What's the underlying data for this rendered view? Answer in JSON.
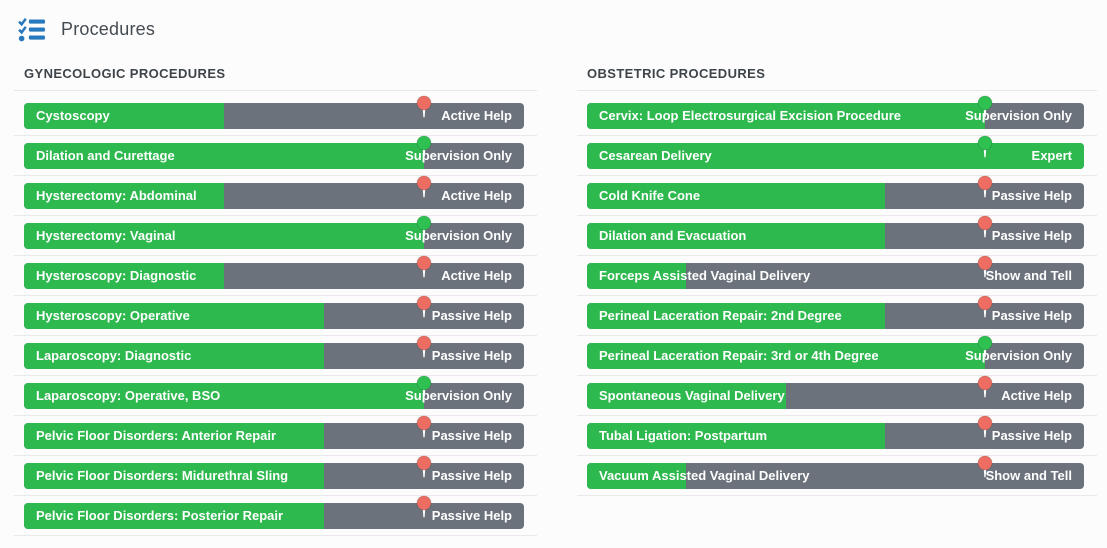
{
  "header": {
    "title": "Procedures",
    "icon": "tasks-checklist-icon"
  },
  "target_percent": 80,
  "status_scale": [
    "Show and Tell",
    "Active Help",
    "Passive Help",
    "Supervision Only",
    "Expert"
  ],
  "columns": [
    {
      "title": "GYNECOLOGIC PROCEDURES",
      "rows": [
        {
          "label": "Cystoscopy",
          "status": "Active Help",
          "progress_percent": 40,
          "target_met": false
        },
        {
          "label": "Dilation and Curettage",
          "status": "Supervision Only",
          "progress_percent": 80,
          "target_met": true
        },
        {
          "label": "Hysterectomy: Abdominal",
          "status": "Active Help",
          "progress_percent": 40,
          "target_met": false
        },
        {
          "label": "Hysterectomy: Vaginal",
          "status": "Supervision Only",
          "progress_percent": 80,
          "target_met": true
        },
        {
          "label": "Hysteroscopy: Diagnostic",
          "status": "Active Help",
          "progress_percent": 40,
          "target_met": false
        },
        {
          "label": "Hysteroscopy: Operative",
          "status": "Passive Help",
          "progress_percent": 60,
          "target_met": false
        },
        {
          "label": "Laparoscopy: Diagnostic",
          "status": "Passive Help",
          "progress_percent": 60,
          "target_met": false
        },
        {
          "label": "Laparoscopy: Operative, BSO",
          "status": "Supervision Only",
          "progress_percent": 80,
          "target_met": true
        },
        {
          "label": "Pelvic Floor Disorders: Anterior Repair",
          "status": "Passive Help",
          "progress_percent": 60,
          "target_met": false
        },
        {
          "label": "Pelvic Floor Disorders: Midurethral Sling",
          "status": "Passive Help",
          "progress_percent": 60,
          "target_met": false
        },
        {
          "label": "Pelvic Floor Disorders: Posterior Repair",
          "status": "Passive Help",
          "progress_percent": 60,
          "target_met": false
        }
      ]
    },
    {
      "title": "OBSTETRIC PROCEDURES",
      "rows": [
        {
          "label": "Cervix: Loop Electrosurgical Excision Procedure",
          "status": "Supervision Only",
          "progress_percent": 80,
          "target_met": true
        },
        {
          "label": "Cesarean Delivery",
          "status": "Expert",
          "progress_percent": 100,
          "target_met": true
        },
        {
          "label": "Cold Knife Cone",
          "status": "Passive Help",
          "progress_percent": 60,
          "target_met": false
        },
        {
          "label": "Dilation and Evacuation",
          "status": "Passive Help",
          "progress_percent": 60,
          "target_met": false
        },
        {
          "label": "Forceps Assisted Vaginal Delivery",
          "status": "Show and Tell",
          "progress_percent": 20,
          "target_met": false
        },
        {
          "label": "Perineal Laceration Repair: 2nd Degree",
          "status": "Passive Help",
          "progress_percent": 60,
          "target_met": false
        },
        {
          "label": "Perineal Laceration Repair: 3rd or 4th Degree",
          "status": "Supervision Only",
          "progress_percent": 80,
          "target_met": true
        },
        {
          "label": "Spontaneous Vaginal Delivery",
          "status": "Active Help",
          "progress_percent": 40,
          "target_met": false
        },
        {
          "label": "Tubal Ligation: Postpartum",
          "status": "Passive Help",
          "progress_percent": 60,
          "target_met": false
        },
        {
          "label": "Vacuum Assisted Vaginal Delivery",
          "status": "Show and Tell",
          "progress_percent": 20,
          "target_met": false
        }
      ]
    }
  ],
  "colors": {
    "fill_green": "#2eb94f",
    "bar_gray": "#6c727c",
    "pin_red": "#ee6d62",
    "pin_green": "#2fc052",
    "icon_blue": "#2878be"
  }
}
